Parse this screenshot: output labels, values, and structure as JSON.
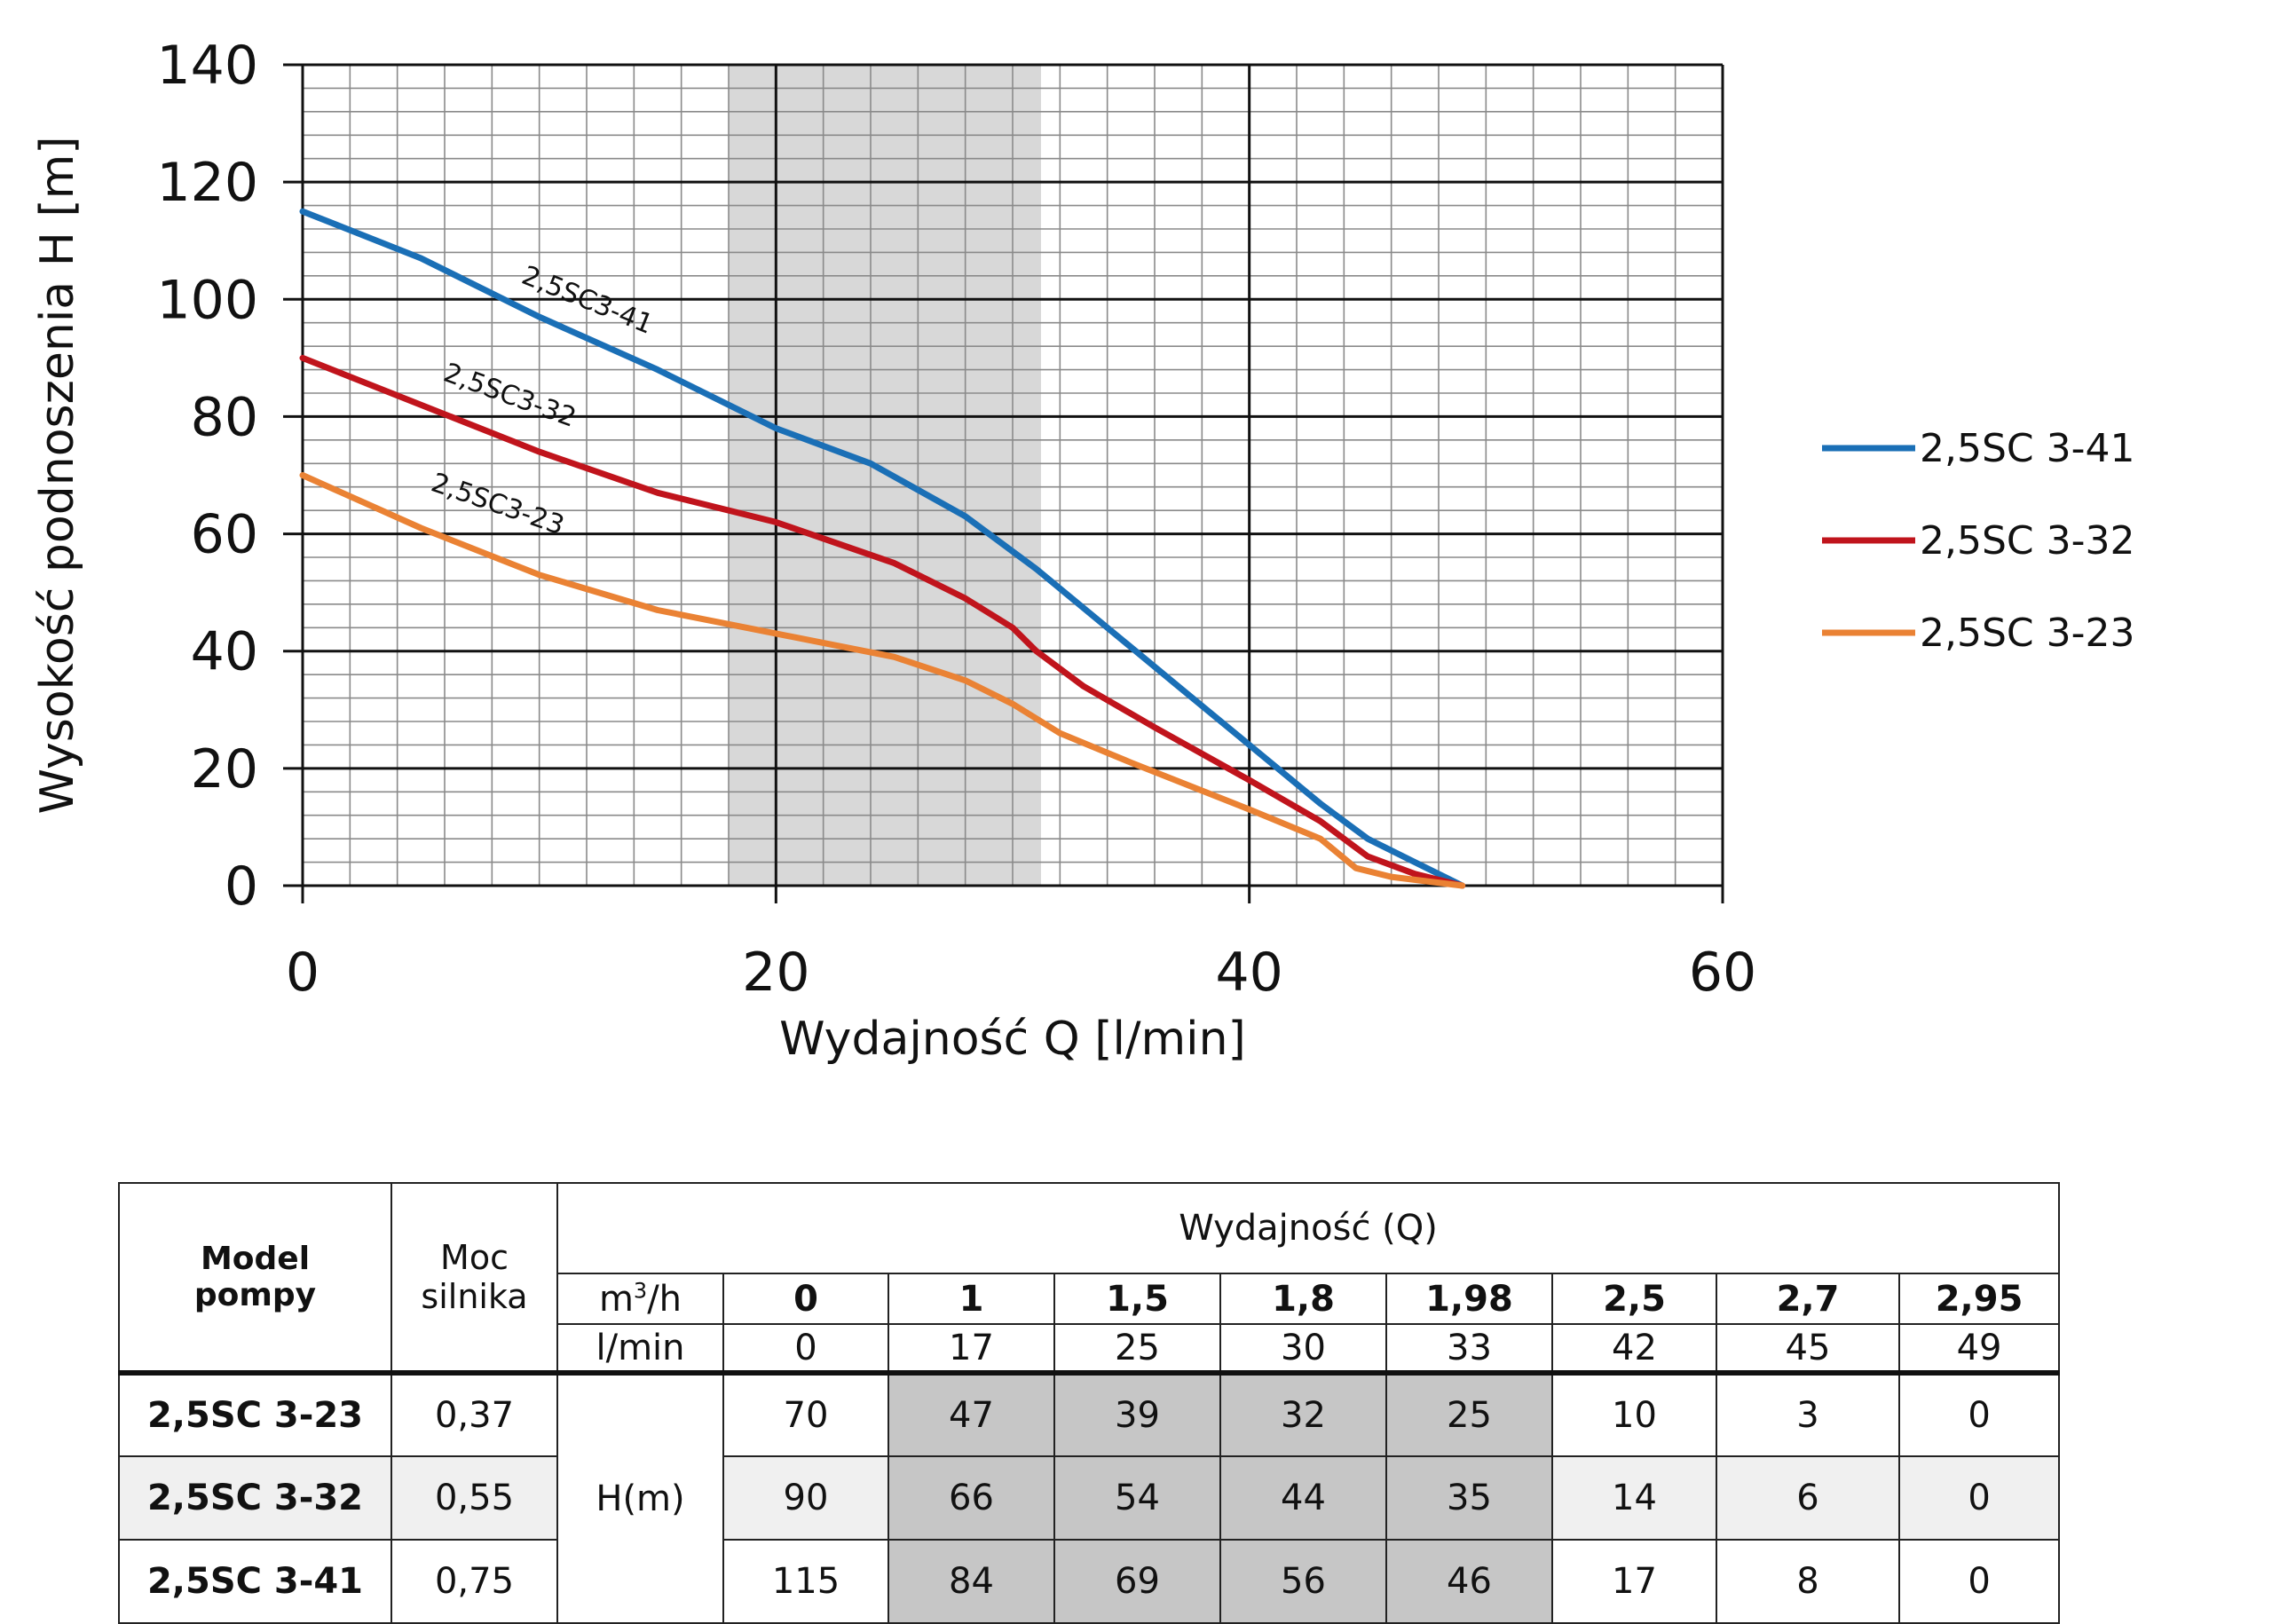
{
  "chart_data": {
    "type": "line",
    "xlabel": "Wydajność Q [l/min]",
    "ylabel": "Wysokość podnoszenia H [m]",
    "xlim": [
      0,
      60
    ],
    "ylim": [
      0,
      140
    ],
    "x_ticks": [
      "0",
      "20",
      "40",
      "60"
    ],
    "y_ticks": [
      "0",
      "20",
      "40",
      "60",
      "80",
      "100",
      "120",
      "140"
    ],
    "grid": "major and minor",
    "legend": "right",
    "highlight_band": {
      "x": [
        18,
        31.2
      ]
    },
    "series": [
      {
        "name": "2,5SC 3-41",
        "curve_label": "2,5SC3-41",
        "color": "#1a6fb6",
        "points": [
          [
            0,
            115
          ],
          [
            5,
            107
          ],
          [
            10,
            97
          ],
          [
            15,
            88
          ],
          [
            20,
            78
          ],
          [
            24,
            72
          ],
          [
            28,
            63
          ],
          [
            31,
            54
          ],
          [
            34,
            44
          ],
          [
            37,
            34
          ],
          [
            40,
            24
          ],
          [
            43,
            14
          ],
          [
            45,
            8
          ],
          [
            47,
            4
          ],
          [
            49,
            0
          ]
        ]
      },
      {
        "name": "2,5SC 3-32",
        "curve_label": "2,5SC3-32",
        "color": "#c0141c",
        "points": [
          [
            0,
            90
          ],
          [
            5,
            82
          ],
          [
            10,
            74
          ],
          [
            15,
            67
          ],
          [
            20,
            62
          ],
          [
            25,
            55
          ],
          [
            28,
            49
          ],
          [
            30,
            44
          ],
          [
            31,
            40
          ],
          [
            33,
            34
          ],
          [
            36,
            27
          ],
          [
            40,
            18
          ],
          [
            43,
            11
          ],
          [
            45,
            5
          ],
          [
            47,
            2
          ],
          [
            49,
            0
          ]
        ]
      },
      {
        "name": "2,5SC 3-23",
        "curve_label": "2,5SC3-23",
        "color": "#ea8234",
        "points": [
          [
            0,
            70
          ],
          [
            5,
            61
          ],
          [
            10,
            53
          ],
          [
            15,
            47
          ],
          [
            20,
            43
          ],
          [
            25,
            39
          ],
          [
            28,
            35
          ],
          [
            30,
            31
          ],
          [
            32,
            26
          ],
          [
            35,
            21
          ],
          [
            40,
            13
          ],
          [
            43,
            8
          ],
          [
            44.5,
            3
          ],
          [
            46,
            1.5
          ],
          [
            49,
            0
          ]
        ]
      }
    ]
  },
  "table": {
    "model_header": [
      "Model",
      "pompy"
    ],
    "power_header": [
      "Moc",
      "silnika"
    ],
    "flow_header": "Wydajność (Q)",
    "unit_m3h": "m",
    "unit_m3h_sup": "3",
    "unit_m3h_suffix": "/h",
    "unit_lmin": "l/min",
    "m3h_values": [
      "0",
      "1",
      "1,5",
      "1,8",
      "1,98",
      "2,5",
      "2,7",
      "2,95"
    ],
    "lmin_values": [
      "0",
      "17",
      "25",
      "30",
      "33",
      "42",
      "45",
      "49"
    ],
    "head_label": "H(m)",
    "rows": [
      {
        "model": "2,5SC 3-23",
        "power": "0,37",
        "values": [
          "70",
          "47",
          "39",
          "32",
          "25",
          "10",
          "3",
          "0"
        ]
      },
      {
        "model": "2,5SC 3-32",
        "power": "0,55",
        "values": [
          "90",
          "66",
          "54",
          "44",
          "35",
          "14",
          "6",
          "0"
        ]
      },
      {
        "model": "2,5SC 3-41",
        "power": "0,75",
        "values": [
          "115",
          "84",
          "69",
          "56",
          "46",
          "17",
          "8",
          "0"
        ]
      }
    ]
  }
}
